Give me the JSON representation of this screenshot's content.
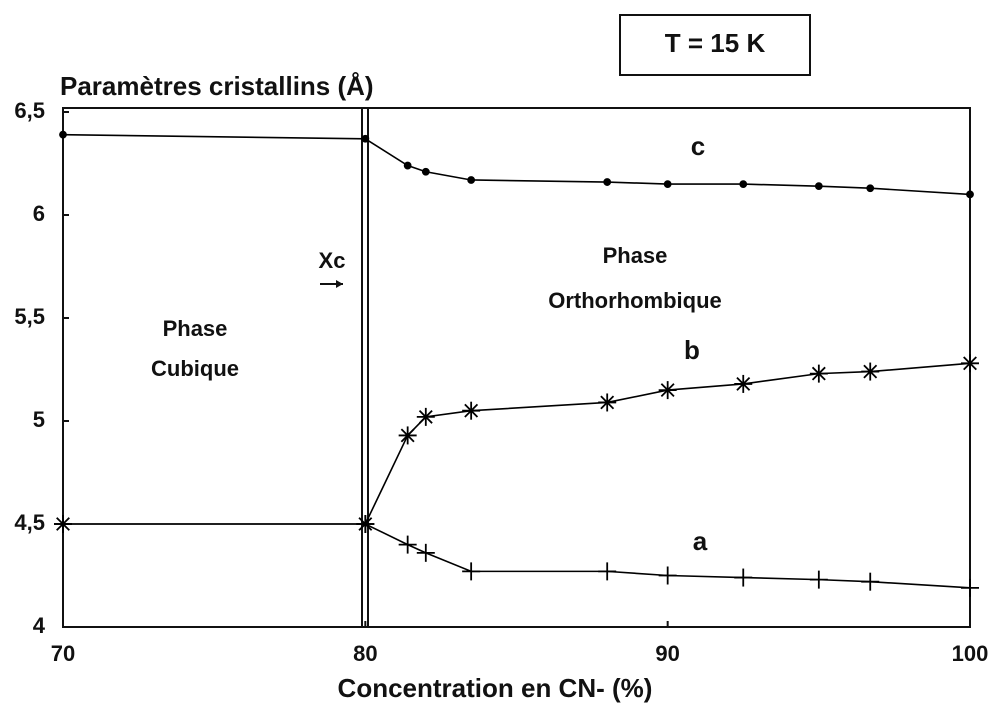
{
  "chart_data": {
    "type": "line",
    "ylabel": "Paramètres cristallins (Å)",
    "xlabel": "Concentration en CN- (%)",
    "annotations": [
      "T = 15 K",
      "Phase",
      "Cubique",
      "Phase",
      "Orthorhombique",
      "Xc"
    ],
    "x": [
      70,
      80,
      81.4,
      82,
      83.5,
      88,
      90,
      92.5,
      95,
      96.7,
      100
    ],
    "series": [
      {
        "name": "c",
        "color": "#000000",
        "marker": "dot",
        "values": [
          6.39,
          6.37,
          6.24,
          6.21,
          6.17,
          6.16,
          6.15,
          6.15,
          6.14,
          6.13,
          6.1
        ]
      },
      {
        "name": "b",
        "color": "#000000",
        "marker": "asterisk",
        "values": [
          4.5,
          4.5,
          4.93,
          5.02,
          5.05,
          5.09,
          5.15,
          5.18,
          5.23,
          5.24,
          5.28
        ]
      },
      {
        "name": "a",
        "color": "#000000",
        "marker": "plus",
        "values": [
          4.5,
          4.5,
          4.4,
          4.36,
          4.27,
          4.27,
          4.25,
          4.24,
          4.23,
          4.22,
          4.19
        ]
      }
    ],
    "xlim": [
      70,
      100
    ],
    "xticks": [
      70,
      80,
      90,
      100
    ],
    "ylim": [
      4,
      6.5
    ],
    "yticks": [
      4,
      {
        "value": 4.5,
        "label": "4,5"
      },
      5,
      {
        "value": 5.5,
        "label": "5,5"
      },
      6,
      {
        "value": 6.5,
        "label": "6,5"
      }
    ],
    "grid": false
  }
}
